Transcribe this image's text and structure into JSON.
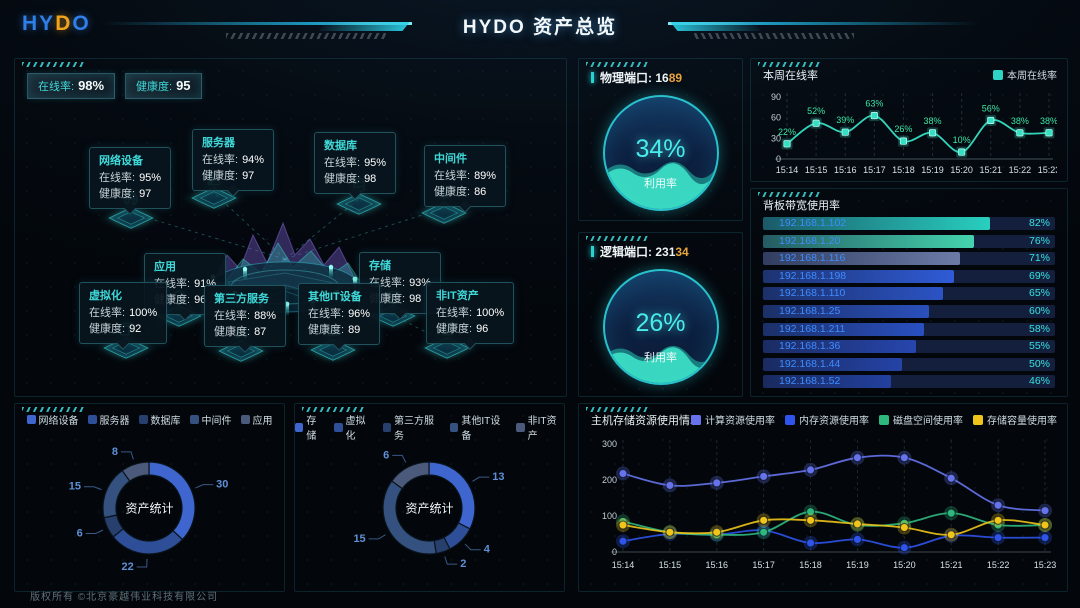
{
  "brand": {
    "prefix": "HY",
    "accent": "D",
    "suffix": "O"
  },
  "header": {
    "title": "HYDO 资产总览"
  },
  "footer": {
    "copyright": "版权所有 ©北京豪越伟业科技有限公司"
  },
  "labels": {
    "online": "在线率:",
    "health": "健康度:"
  },
  "overview": {
    "online_label": "在线率:",
    "online_value": "98%",
    "health_label": "健康度:",
    "health_value": "95"
  },
  "topology": {
    "nodes": [
      {
        "key": "network",
        "label": "网络设备",
        "online": "95%",
        "health": "97"
      },
      {
        "key": "server",
        "label": "服务器",
        "online": "94%",
        "health": "97"
      },
      {
        "key": "database",
        "label": "数据库",
        "online": "95%",
        "health": "98"
      },
      {
        "key": "middleware",
        "label": "中间件",
        "online": "89%",
        "health": "86"
      },
      {
        "key": "app",
        "label": "应用",
        "online": "91%",
        "health": "96"
      },
      {
        "key": "virtualization",
        "label": "虚拟化",
        "online": "100%",
        "health": "92"
      },
      {
        "key": "thirdparty",
        "label": "第三方服务",
        "online": "88%",
        "health": "87"
      },
      {
        "key": "storage",
        "label": "存储",
        "online": "93%",
        "health": "98"
      },
      {
        "key": "otherit",
        "label": "其他IT设备",
        "online": "96%",
        "health": "89"
      },
      {
        "key": "nonit",
        "label": "非IT资产",
        "online": "100%",
        "health": "96"
      }
    ]
  },
  "ports": {
    "physical_label": "物理端口:",
    "physical_value_main": "16",
    "physical_value_accent": "89",
    "logical_label": "逻辑端口:",
    "logical_value_main": "231",
    "logical_value_accent": "34",
    "gauge_label": "利用率",
    "physical_pct": "34%",
    "logical_pct": "26%"
  },
  "chart_data": {
    "weekly_online": {
      "type": "line",
      "title": "本周在线率",
      "legend": [
        "本周在线率"
      ],
      "x": [
        "15:14",
        "15:15",
        "15:16",
        "15:17",
        "15:18",
        "15:19",
        "15:20",
        "15:21",
        "15:22",
        "15:23"
      ],
      "values": [
        22,
        52,
        39,
        63,
        26,
        38,
        10,
        56,
        38,
        38
      ],
      "ylim": [
        0,
        90
      ],
      "yticks": [
        0,
        30,
        60,
        90
      ],
      "color": "#35dfc4",
      "label_color": "#3ce6a4",
      "grid": "dashed-vertical"
    },
    "bandwidth": {
      "type": "bar",
      "title": "背板带宽使用率",
      "unit": "%",
      "categories": [
        "192.168.1.102",
        "192.168.1.20",
        "192.168.1.116",
        "192.168.1.198",
        "192.168.1.110",
        "192.168.1.25",
        "192.168.1.211",
        "192.168.1.36",
        "192.168.1.44",
        "192.168.1.52"
      ],
      "values": [
        82,
        76,
        71,
        69,
        65,
        60,
        58,
        55,
        50,
        46
      ],
      "colors": [
        "#28cfc0",
        "#45d4ae",
        "#6b7ba6",
        "#2f5bd6",
        "#2b53c4",
        "#2a50bc",
        "#2950c0",
        "#2746ae",
        "#2443a6",
        "#22409e"
      ]
    },
    "asset_donut_left": {
      "type": "pie",
      "title": "资产统计",
      "categories": [
        "网络设备",
        "服务器",
        "数据库",
        "中间件",
        "应用"
      ],
      "values": [
        30,
        22,
        6,
        15,
        8
      ],
      "colors": [
        "#3f66cf",
        "#2e4f97",
        "#273f6d",
        "#34517f",
        "#4b5a7b"
      ],
      "label_color": "#5e8fd6"
    },
    "asset_donut_right": {
      "type": "pie",
      "title": "资产统计",
      "categories": [
        "存储",
        "虚拟化",
        "第三方服务",
        "其他IT设备",
        "非IT资产"
      ],
      "values": [
        13,
        4,
        2,
        15,
        6
      ],
      "colors": [
        "#3f66cf",
        "#2e4f97",
        "#273f6d",
        "#34517f",
        "#4b5a7b"
      ],
      "label_color": "#5e8fd6"
    },
    "host_usage": {
      "type": "line",
      "title": "主机存储资源使用情况",
      "x": [
        "15:14",
        "15:15",
        "15:16",
        "15:17",
        "15:18",
        "15:19",
        "15:20",
        "15:21",
        "15:22",
        "15:23"
      ],
      "ylim": [
        0,
        300
      ],
      "yticks": [
        0,
        100,
        200,
        300
      ],
      "grid": "dashed-vertical",
      "series": [
        {
          "name": "计算资源使用率",
          "color": "#6673ec",
          "values": [
            218,
            185,
            192,
            210,
            228,
            262,
            262,
            205,
            130,
            115
          ]
        },
        {
          "name": "内存资源使用率",
          "color": "#2f54eb",
          "values": [
            30,
            50,
            48,
            60,
            25,
            35,
            12,
            45,
            40,
            40
          ]
        },
        {
          "name": "磁盘空间使用率",
          "color": "#2db87d",
          "values": [
            85,
            55,
            48,
            55,
            112,
            75,
            80,
            108,
            75,
            75
          ]
        },
        {
          "name": "存储容量使用率",
          "color": "#f0c419",
          "values": [
            75,
            55,
            55,
            88,
            88,
            78,
            68,
            48,
            88,
            75
          ]
        }
      ]
    }
  }
}
